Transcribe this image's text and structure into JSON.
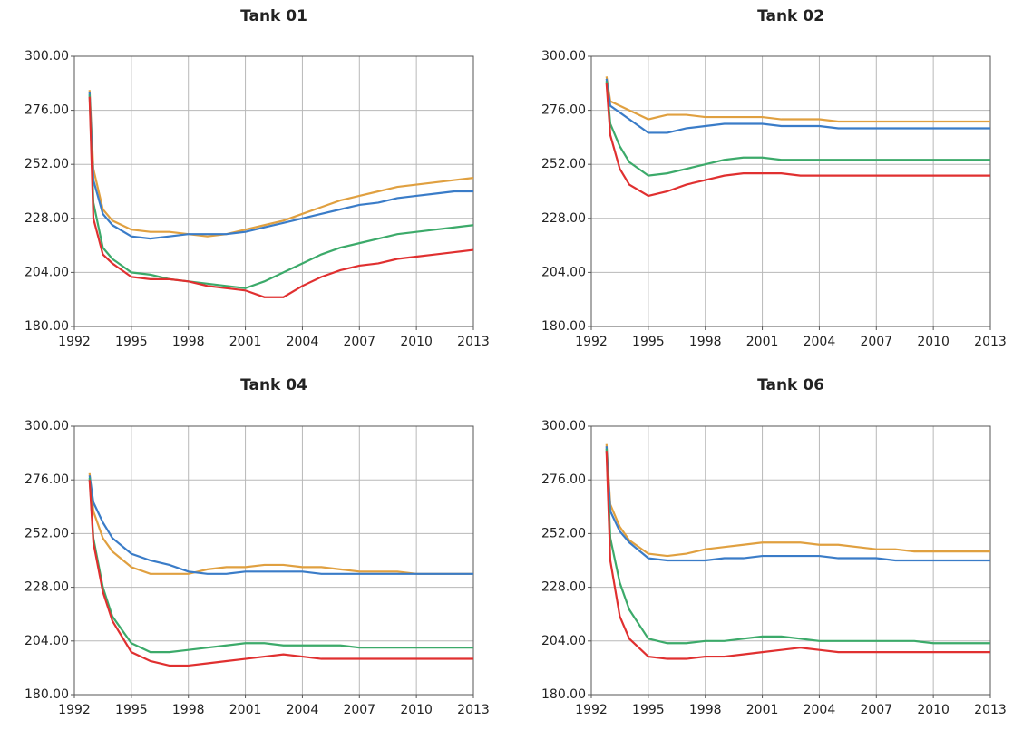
{
  "chart_data": [
    {
      "type": "line",
      "title": "Tank 01",
      "grid": true,
      "x": [
        1992.8,
        1993,
        1993.5,
        1994,
        1995,
        1996,
        1997,
        1998,
        1999,
        2000,
        2001,
        2002,
        2003,
        2004,
        2005,
        2006,
        2007,
        2008,
        2009,
        2010,
        2011,
        2012,
        2013
      ],
      "xlim": [
        1992,
        2013
      ],
      "xticks": [
        1992,
        1995,
        1998,
        2001,
        2004,
        2007,
        2010,
        2013
      ],
      "ylim": [
        180,
        300
      ],
      "yticks": [
        {
          "value": 180,
          "label": "180.00"
        },
        {
          "value": 204,
          "label": "204.00"
        },
        {
          "value": 228,
          "label": "228.00"
        },
        {
          "value": 252,
          "label": "252.00"
        },
        {
          "value": 276,
          "label": "276.00"
        },
        {
          "value": 300,
          "label": "300.00"
        }
      ],
      "series": [
        {
          "color": "#e0a040",
          "values": [
            285,
            250,
            232,
            227,
            223,
            222,
            222,
            221,
            220,
            221,
            223,
            225,
            227,
            230,
            233,
            236,
            238,
            240,
            242,
            243,
            244,
            245,
            246
          ]
        },
        {
          "color": "#3a7cc8",
          "values": [
            284,
            245,
            230,
            225,
            220,
            219,
            220,
            221,
            221,
            221,
            222,
            224,
            226,
            228,
            230,
            232,
            234,
            235,
            237,
            238,
            239,
            240,
            240
          ]
        },
        {
          "color": "#3caa6a",
          "values": [
            283,
            235,
            215,
            210,
            204,
            203,
            201,
            200,
            199,
            198,
            197,
            200,
            204,
            208,
            212,
            215,
            217,
            219,
            221,
            222,
            223,
            224,
            225
          ]
        },
        {
          "color": "#e03030",
          "values": [
            282,
            228,
            212,
            208,
            202,
            201,
            201,
            200,
            198,
            197,
            196,
            193,
            193,
            198,
            202,
            205,
            207,
            208,
            210,
            211,
            212,
            213,
            214
          ]
        }
      ]
    },
    {
      "type": "line",
      "title": "Tank 02",
      "grid": true,
      "x": [
        1992.8,
        1993,
        1993.5,
        1994,
        1995,
        1996,
        1997,
        1998,
        1999,
        2000,
        2001,
        2002,
        2003,
        2004,
        2005,
        2006,
        2007,
        2008,
        2009,
        2010,
        2011,
        2012,
        2013
      ],
      "xlim": [
        1992,
        2013
      ],
      "xticks": [
        1992,
        1995,
        1998,
        2001,
        2004,
        2007,
        2010,
        2013
      ],
      "ylim": [
        180,
        300
      ],
      "yticks": [
        {
          "value": 180,
          "label": "180.00"
        },
        {
          "value": 204,
          "label": "204.00"
        },
        {
          "value": 228,
          "label": "228.00"
        },
        {
          "value": 252,
          "label": "252.00"
        },
        {
          "value": 276,
          "label": "276.00"
        },
        {
          "value": 300,
          "label": "300.00"
        }
      ],
      "series": [
        {
          "color": "#e0a040",
          "values": [
            291,
            280,
            278,
            276,
            272,
            274,
            274,
            273,
            273,
            273,
            273,
            272,
            272,
            272,
            271,
            271,
            271,
            271,
            271,
            271,
            271,
            271,
            271
          ]
        },
        {
          "color": "#3a7cc8",
          "values": [
            290,
            278,
            275,
            272,
            266,
            266,
            268,
            269,
            270,
            270,
            270,
            269,
            269,
            269,
            268,
            268,
            268,
            268,
            268,
            268,
            268,
            268,
            268
          ]
        },
        {
          "color": "#3caa6a",
          "values": [
            289,
            270,
            260,
            253,
            247,
            248,
            250,
            252,
            254,
            255,
            255,
            254,
            254,
            254,
            254,
            254,
            254,
            254,
            254,
            254,
            254,
            254,
            254
          ]
        },
        {
          "color": "#e03030",
          "values": [
            288,
            265,
            250,
            243,
            238,
            240,
            243,
            245,
            247,
            248,
            248,
            248,
            247,
            247,
            247,
            247,
            247,
            247,
            247,
            247,
            247,
            247,
            247
          ]
        }
      ]
    },
    {
      "type": "line",
      "title": "Tank 04",
      "grid": true,
      "x": [
        1992.8,
        1993,
        1993.5,
        1994,
        1995,
        1996,
        1997,
        1998,
        1999,
        2000,
        2001,
        2002,
        2003,
        2004,
        2005,
        2006,
        2007,
        2008,
        2009,
        2010,
        2011,
        2012,
        2013
      ],
      "xlim": [
        1992,
        2013
      ],
      "xticks": [
        1992,
        1995,
        1998,
        2001,
        2004,
        2007,
        2010,
        2013
      ],
      "ylim": [
        180,
        300
      ],
      "yticks": [
        {
          "value": 180,
          "label": "180.00"
        },
        {
          "value": 204,
          "label": "204.00"
        },
        {
          "value": 228,
          "label": "228.00"
        },
        {
          "value": 252,
          "label": "252.00"
        },
        {
          "value": 276,
          "label": "276.00"
        },
        {
          "value": 300,
          "label": "300.00"
        }
      ],
      "series": [
        {
          "color": "#e0a040",
          "values": [
            279,
            262,
            250,
            244,
            237,
            234,
            234,
            234,
            236,
            237,
            237,
            238,
            238,
            237,
            237,
            236,
            235,
            235,
            235,
            234,
            234,
            234,
            234
          ]
        },
        {
          "color": "#3a7cc8",
          "values": [
            278,
            266,
            257,
            250,
            243,
            240,
            238,
            235,
            234,
            234,
            235,
            235,
            235,
            235,
            234,
            234,
            234,
            234,
            234,
            234,
            234,
            234,
            234
          ]
        },
        {
          "color": "#3caa6a",
          "values": [
            277,
            250,
            228,
            215,
            203,
            199,
            199,
            200,
            201,
            202,
            203,
            203,
            202,
            202,
            202,
            202,
            201,
            201,
            201,
            201,
            201,
            201,
            201
          ]
        },
        {
          "color": "#e03030",
          "values": [
            276,
            248,
            226,
            213,
            199,
            195,
            193,
            193,
            194,
            195,
            196,
            197,
            198,
            197,
            196,
            196,
            196,
            196,
            196,
            196,
            196,
            196,
            196
          ]
        }
      ]
    },
    {
      "type": "line",
      "title": "Tank 06",
      "grid": true,
      "x": [
        1992.8,
        1993,
        1993.5,
        1994,
        1995,
        1996,
        1997,
        1998,
        1999,
        2000,
        2001,
        2002,
        2003,
        2004,
        2005,
        2006,
        2007,
        2008,
        2009,
        2010,
        2011,
        2012,
        2013
      ],
      "xlim": [
        1992,
        2013
      ],
      "xticks": [
        1992,
        1995,
        1998,
        2001,
        2004,
        2007,
        2010,
        2013
      ],
      "ylim": [
        180,
        300
      ],
      "yticks": [
        {
          "value": 180,
          "label": "180.00"
        },
        {
          "value": 204,
          "label": "204.00"
        },
        {
          "value": 228,
          "label": "228.00"
        },
        {
          "value": 252,
          "label": "252.00"
        },
        {
          "value": 276,
          "label": "276.00"
        },
        {
          "value": 300,
          "label": "300.00"
        }
      ],
      "series": [
        {
          "color": "#e0a040",
          "values": [
            292,
            265,
            255,
            249,
            243,
            242,
            243,
            245,
            246,
            247,
            248,
            248,
            248,
            247,
            247,
            246,
            245,
            245,
            244,
            244,
            244,
            244,
            244
          ]
        },
        {
          "color": "#3a7cc8",
          "values": [
            291,
            262,
            253,
            248,
            241,
            240,
            240,
            240,
            241,
            241,
            242,
            242,
            242,
            242,
            241,
            241,
            241,
            240,
            240,
            240,
            240,
            240,
            240
          ]
        },
        {
          "color": "#3caa6a",
          "values": [
            290,
            250,
            230,
            218,
            205,
            203,
            203,
            204,
            204,
            205,
            206,
            206,
            205,
            204,
            204,
            204,
            204,
            204,
            204,
            203,
            203,
            203,
            203
          ]
        },
        {
          "color": "#e03030",
          "values": [
            289,
            240,
            215,
            205,
            197,
            196,
            196,
            197,
            197,
            198,
            199,
            200,
            201,
            200,
            199,
            199,
            199,
            199,
            199,
            199,
            199,
            199,
            199
          ]
        }
      ]
    }
  ]
}
